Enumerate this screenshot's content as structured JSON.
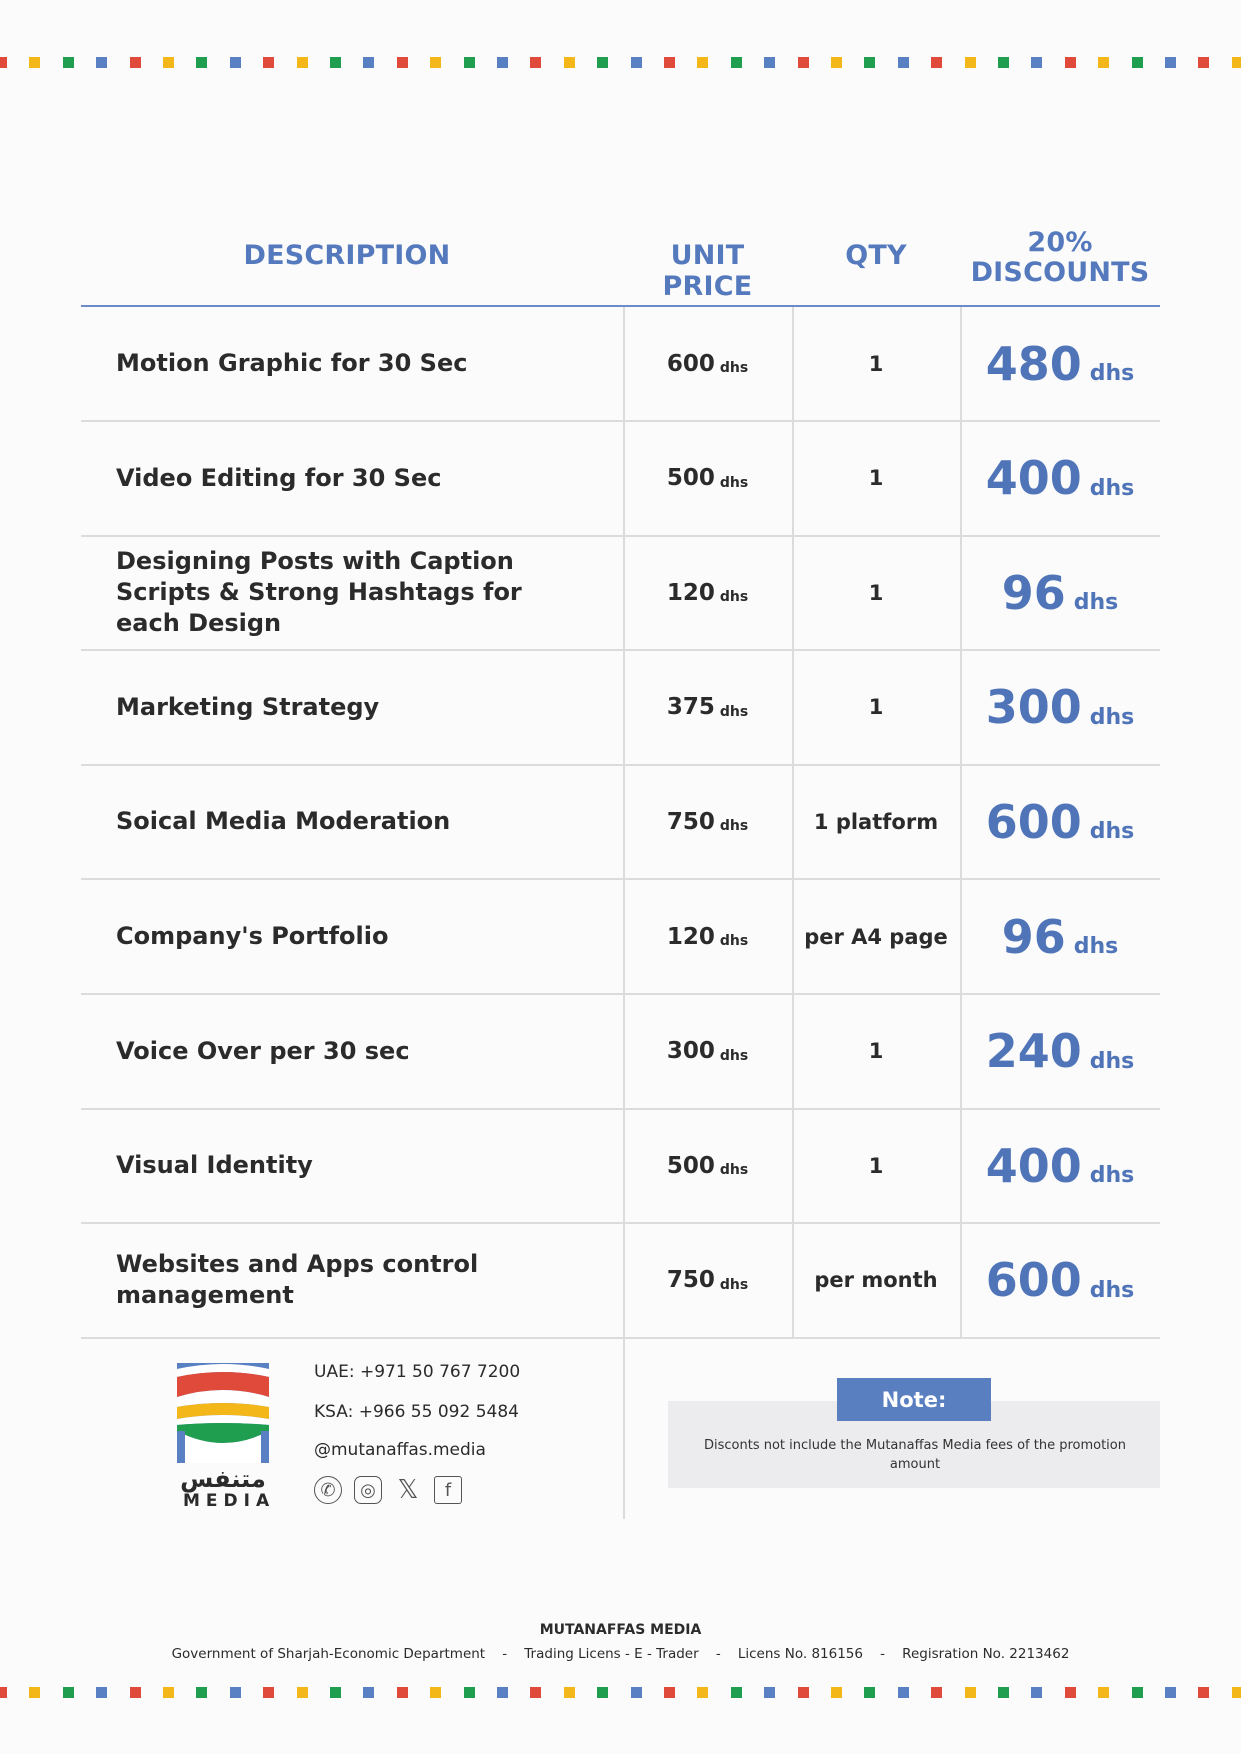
{
  "colors": {
    "accent": "#5479bd",
    "red": "#e04a3a",
    "yellow": "#f4b71a",
    "green": "#1f9e4f",
    "blue": "#5a80c4"
  },
  "header": {
    "description": "DESCRIPTION",
    "unit_price": "UNIT PRICE",
    "qty": "QTY",
    "discount_pct": "20%",
    "discount_label": "DISCOUNTS"
  },
  "rows": [
    {
      "description": "Motion Graphic for 30 Sec",
      "price": "600",
      "qty": "1",
      "discount": "480"
    },
    {
      "description": "Video Editing for 30 Sec",
      "price": "500",
      "qty": "1",
      "discount": "400"
    },
    {
      "description": "Designing Posts with Caption Scripts & Strong Hashtags for each Design",
      "price": "120",
      "qty": "1",
      "discount": "96"
    },
    {
      "description": "Marketing Strategy",
      "price": "375",
      "qty": "1",
      "discount": "300"
    },
    {
      "description": "Soical Media Moderation",
      "price": "750",
      "qty": "1 platform",
      "discount": "600"
    },
    {
      "description": "Company's Portfolio",
      "price": "120",
      "qty": "per A4 page",
      "discount": "96"
    },
    {
      "description": "Voice Over per 30 sec",
      "price": "300",
      "qty": "1",
      "discount": "240"
    },
    {
      "description": "Visual Identity",
      "price": "500",
      "qty": "1",
      "discount": "400"
    },
    {
      "description": "Websites and Apps control management",
      "price": "750",
      "qty": "per month",
      "discount": "600"
    }
  ],
  "currency": "dhs",
  "logo": {
    "arabic": "متنفس",
    "text": "MEDIA"
  },
  "contact": {
    "uae": "UAE: +971 50 767 7200",
    "ksa": "KSA: +966 55 092 5484",
    "handle": "@mutanaffas.media",
    "icons": [
      "whatsapp-icon",
      "instagram-icon",
      "x-icon",
      "facebook-icon"
    ]
  },
  "note": {
    "title": "Note:",
    "text": "Disconts not include the Mutanaffas Media fees of the promotion amount"
  },
  "footer": {
    "title": "MUTANAFFAS MEDIA",
    "line": "Government of Sharjah-Economic Department    -    Trading Licens - E - Trader    -    Licens No. 816156    -    Regisration No. 2213462"
  }
}
